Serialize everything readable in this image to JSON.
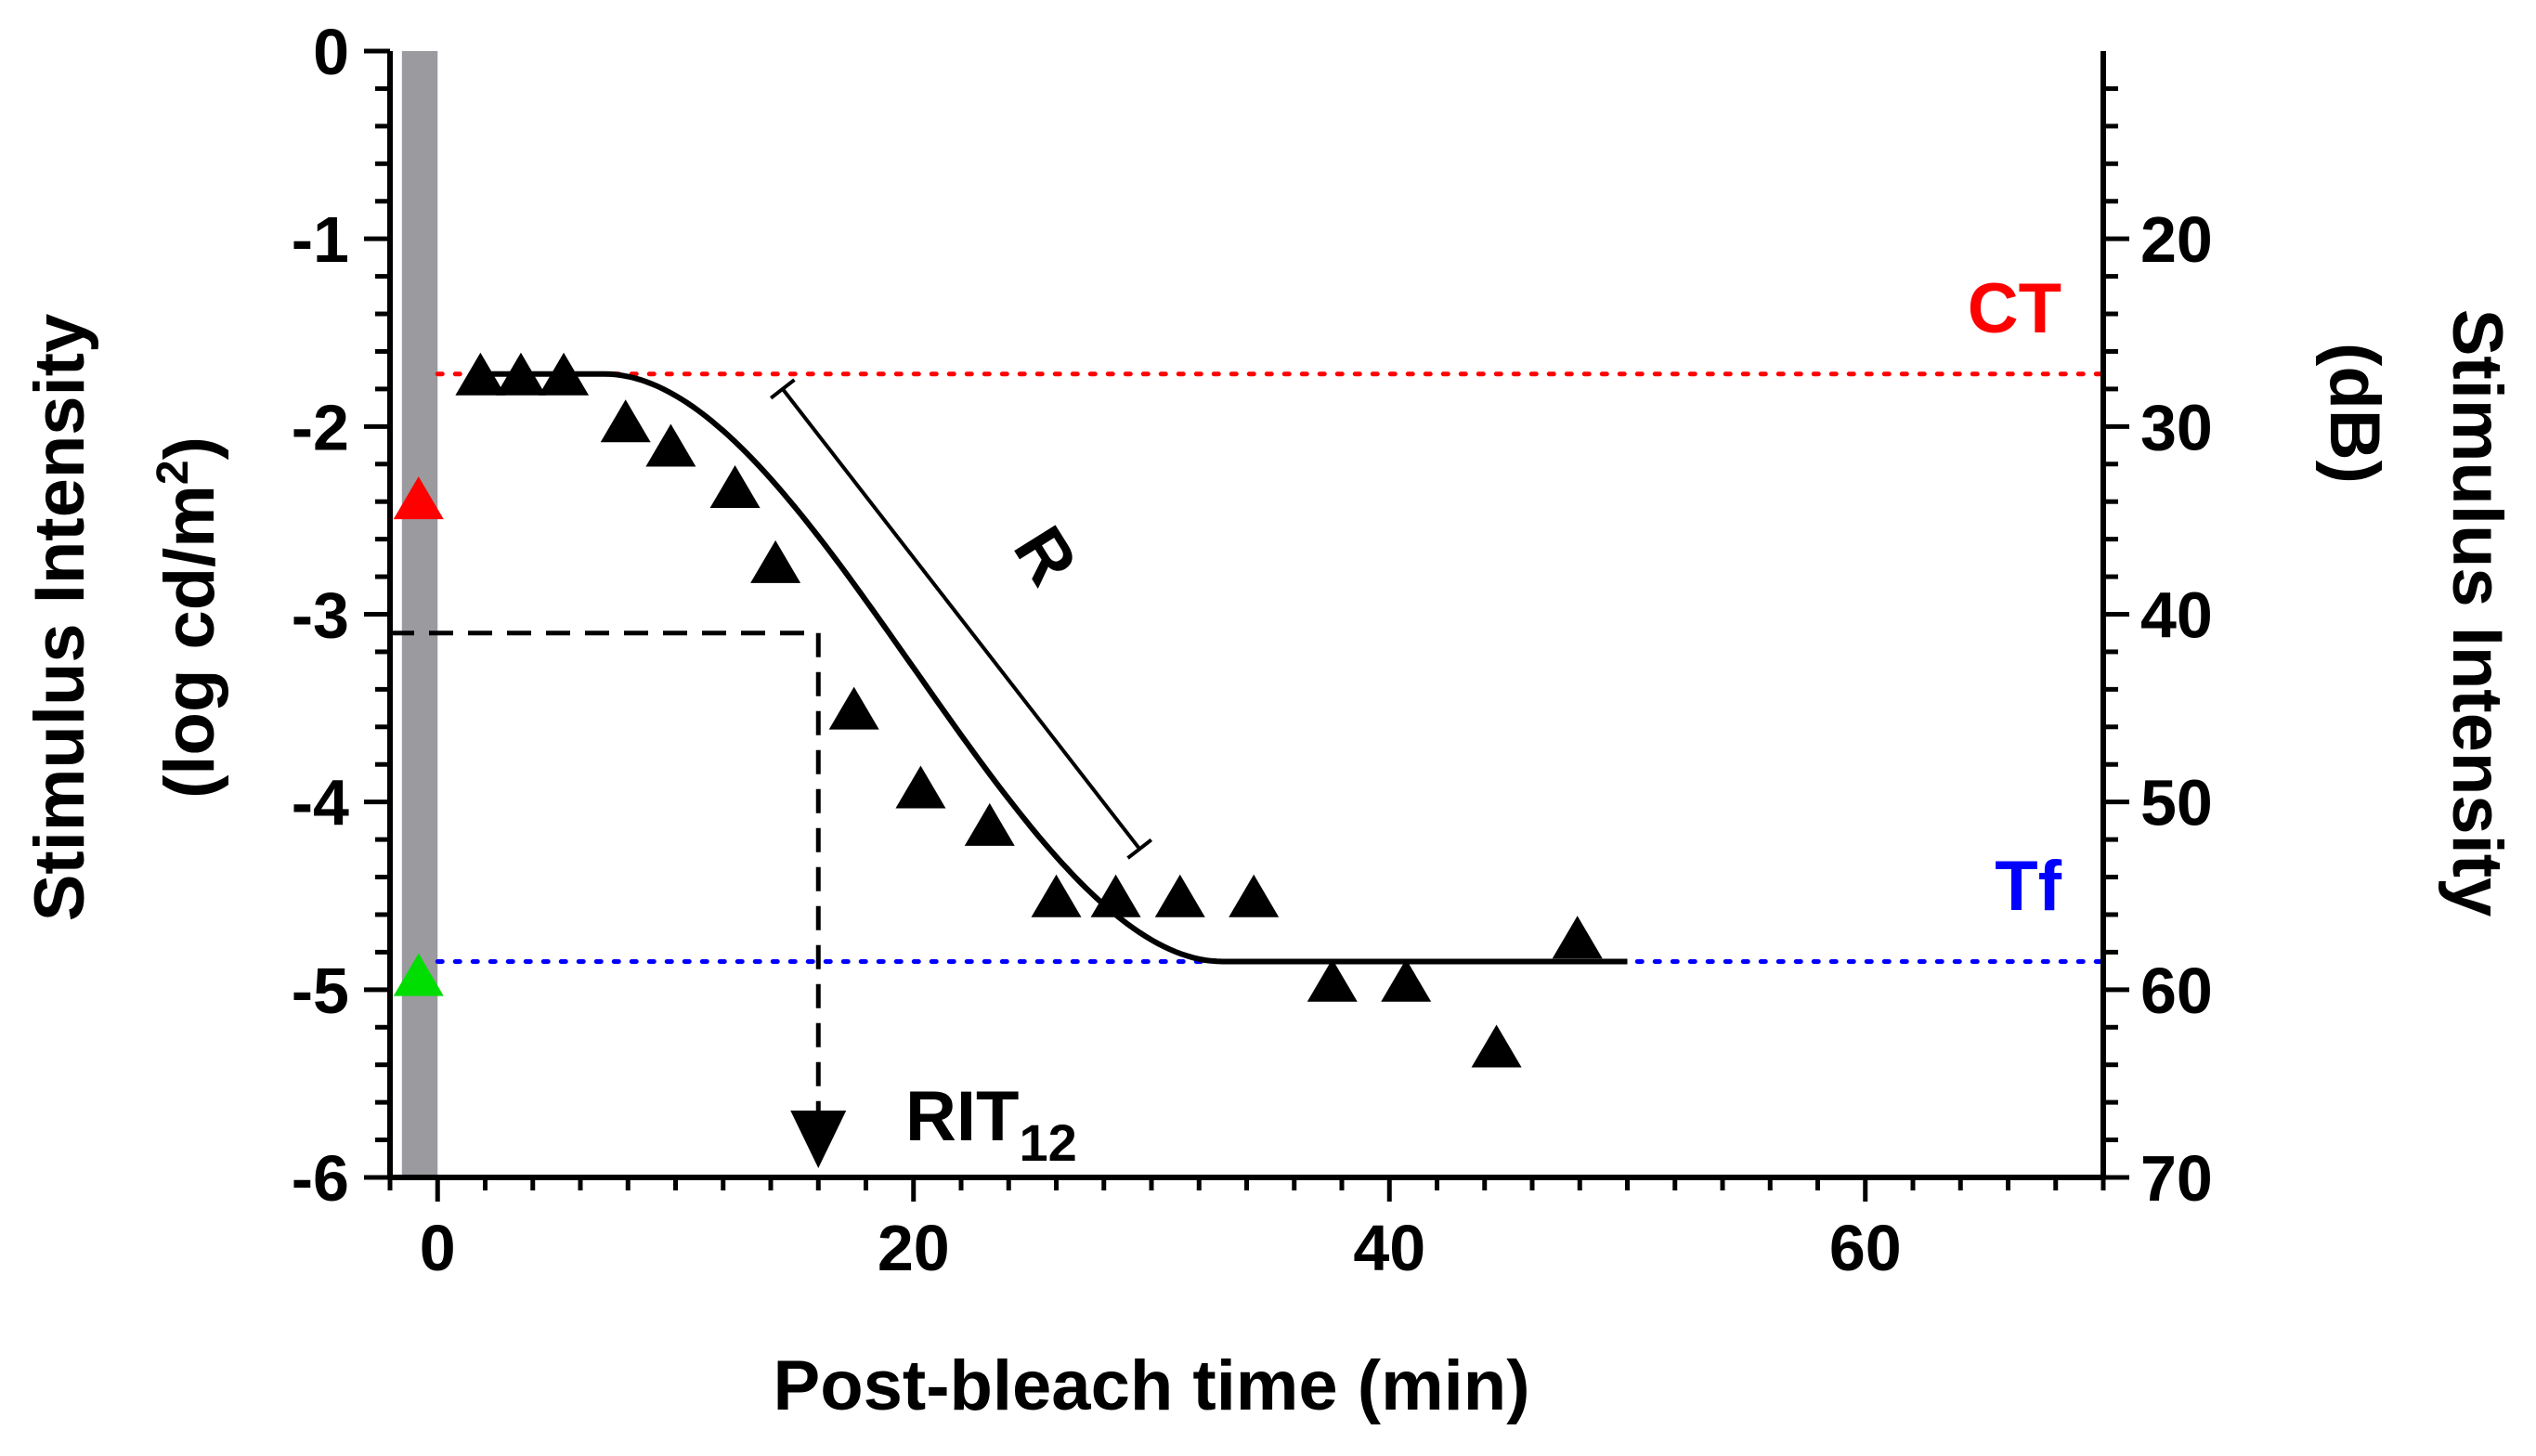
{
  "chart_data": {
    "type": "scatter",
    "title": "",
    "xlabel": "Post-bleach time (min)",
    "ylabel_left": [
      "Stimulus Intensity",
      "(log cd/m",
      "2",
      ")"
    ],
    "ylabel_right": [
      "Stimulus Intensity",
      "(dB)"
    ],
    "xlim": [
      -2,
      70
    ],
    "ylim": [
      -6,
      0
    ],
    "xticks": [
      0,
      20,
      40,
      60
    ],
    "yticks_left": [
      0,
      -1,
      -2,
      -3,
      -4,
      -5,
      -6
    ],
    "yticks_right": [
      20,
      30,
      40,
      50,
      60,
      70
    ],
    "grid": false,
    "series": [
      {
        "marker": "triangle-up",
        "color": "#000000",
        "points": [
          [
            1.8,
            -1.72
          ],
          [
            3.5,
            -1.72
          ],
          [
            5.3,
            -1.72
          ],
          [
            7.9,
            -1.97
          ],
          [
            9.8,
            -2.1
          ],
          [
            12.5,
            -2.32
          ],
          [
            14.2,
            -2.72
          ],
          [
            17.5,
            -3.5
          ],
          [
            20.3,
            -3.92
          ],
          [
            23.2,
            -4.12
          ],
          [
            26.0,
            -4.5
          ],
          [
            28.5,
            -4.5
          ],
          [
            31.2,
            -4.5
          ],
          [
            34.3,
            -4.5
          ],
          [
            37.6,
            -4.95
          ],
          [
            40.7,
            -4.95
          ],
          [
            44.5,
            -5.3
          ],
          [
            47.9,
            -4.72
          ]
        ]
      },
      {
        "marker": "triangle-up",
        "color": "#ff0000",
        "points": [
          [
            -0.8,
            -2.38
          ]
        ]
      },
      {
        "marker": "triangle-up",
        "color": "#00dd00",
        "points": [
          [
            -0.8,
            -4.92
          ]
        ]
      }
    ],
    "fit_curve": {
      "color": "#000000",
      "plateau_high": -1.72,
      "plateau_low": -4.85,
      "x_break_start": 7.0,
      "x_break_end": 33.0,
      "x_end": 50.0
    },
    "bleach_band": {
      "from": -1.5,
      "to": 0,
      "color": "#9a9a9f"
    },
    "reference_lines": [
      {
        "label": "CT",
        "y": -1.72,
        "color": "#ff0000",
        "style": "dotted"
      },
      {
        "label": "Tf",
        "y": -4.85,
        "color": "#0000ff",
        "style": "dotted"
      }
    ],
    "annotations": {
      "slope_label": "R",
      "rit_label_main": "RIT",
      "rit_label_sub": "12",
      "rit_x": 16.0,
      "rit_y": -3.1,
      "slope_from": [
        14.5,
        -1.8
      ],
      "slope_to": [
        29.5,
        -4.25
      ]
    }
  }
}
